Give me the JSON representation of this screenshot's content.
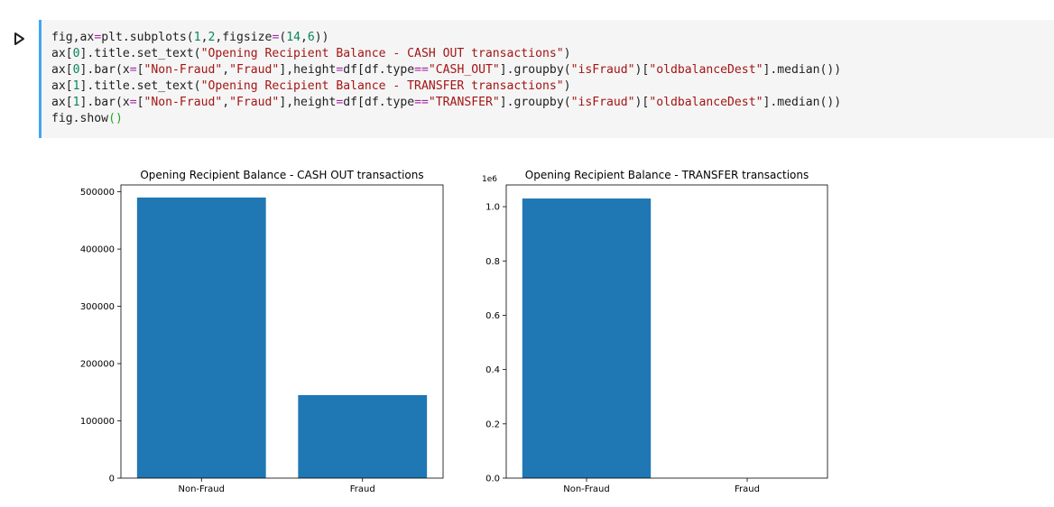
{
  "cell": {
    "code_lines": [
      "fig,ax=plt.subplots(1,2,figsize=(14,6))",
      "ax[0].title.set_text(\"Opening Recipient Balance - CASH OUT transactions\")",
      "ax[0].bar(x=[\"Non-Fraud\",\"Fraud\"],height=df[df.type==\"CASH_OUT\"].groupby(\"isFraud\")[\"oldbalanceDest\"].median())",
      "ax[1].title.set_text(\"Opening Recipient Balance - TRANSFER transactions\")",
      "ax[1].bar(x=[\"Non-Fraud\",\"Fraud\"],height=df[df.type==\"TRANSFER\"].groupby(\"isFraud\")[\"oldbalanceDest\"].median())",
      "fig.show()"
    ],
    "run_icon": "play-icon"
  },
  "chart_data": [
    {
      "type": "bar",
      "title": "Opening Recipient Balance - CASH OUT transactions",
      "categories": [
        "Non-Fraud",
        "Fraud"
      ],
      "values": [
        490000,
        145000
      ],
      "ylim": [
        0,
        512000
      ],
      "yticks": [
        0,
        100000,
        200000,
        300000,
        400000,
        500000
      ],
      "ytick_labels": [
        "0",
        "100000",
        "200000",
        "300000",
        "400000",
        "500000"
      ],
      "offset_label": "",
      "bar_color": "#1f77b4",
      "grid": false
    },
    {
      "type": "bar",
      "title": "Opening Recipient Balance - TRANSFER transactions",
      "categories": [
        "Non-Fraud",
        "Fraud"
      ],
      "values": [
        1030000,
        0
      ],
      "ylim": [
        0,
        1080000
      ],
      "yticks": [
        0,
        200000,
        400000,
        600000,
        800000,
        1000000
      ],
      "ytick_labels": [
        "0.0",
        "0.2",
        "0.4",
        "0.6",
        "0.8",
        "1.0"
      ],
      "offset_label": "1e6",
      "bar_color": "#1f77b4",
      "grid": false
    }
  ]
}
